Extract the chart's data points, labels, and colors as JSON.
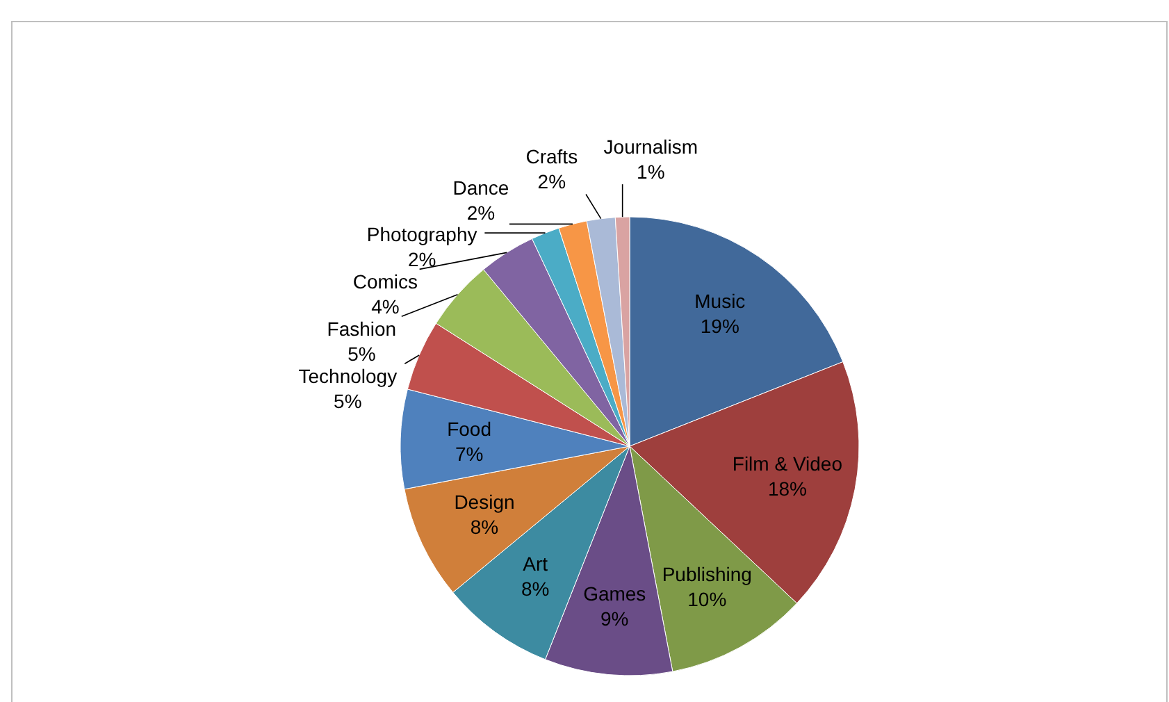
{
  "chart_data": {
    "type": "pie",
    "categories": [
      "Music",
      "Film & Video",
      "Publishing",
      "Games",
      "Art",
      "Design",
      "Food",
      "Technology",
      "Fashion",
      "Comics",
      "Photography",
      "Dance",
      "Crafts",
      "Journalism"
    ],
    "values": [
      19,
      18,
      10,
      9,
      8,
      8,
      7,
      5,
      5,
      4,
      2,
      2,
      2,
      1
    ],
    "value_labels": [
      "19%",
      "18%",
      "10%",
      "9%",
      "8%",
      "8%",
      "7%",
      "5%",
      "5%",
      "4%",
      "2%",
      "2%",
      "2%",
      "1%"
    ],
    "colors": [
      "#41699a",
      "#9e3f3d",
      "#7f9a48",
      "#6a4d87",
      "#3d8ba1",
      "#d07f3a",
      "#4f81bd",
      "#c0504d",
      "#9bbb59",
      "#8064a2",
      "#4bacc6",
      "#f79646",
      "#aabad7",
      "#d9a3a2"
    ]
  }
}
